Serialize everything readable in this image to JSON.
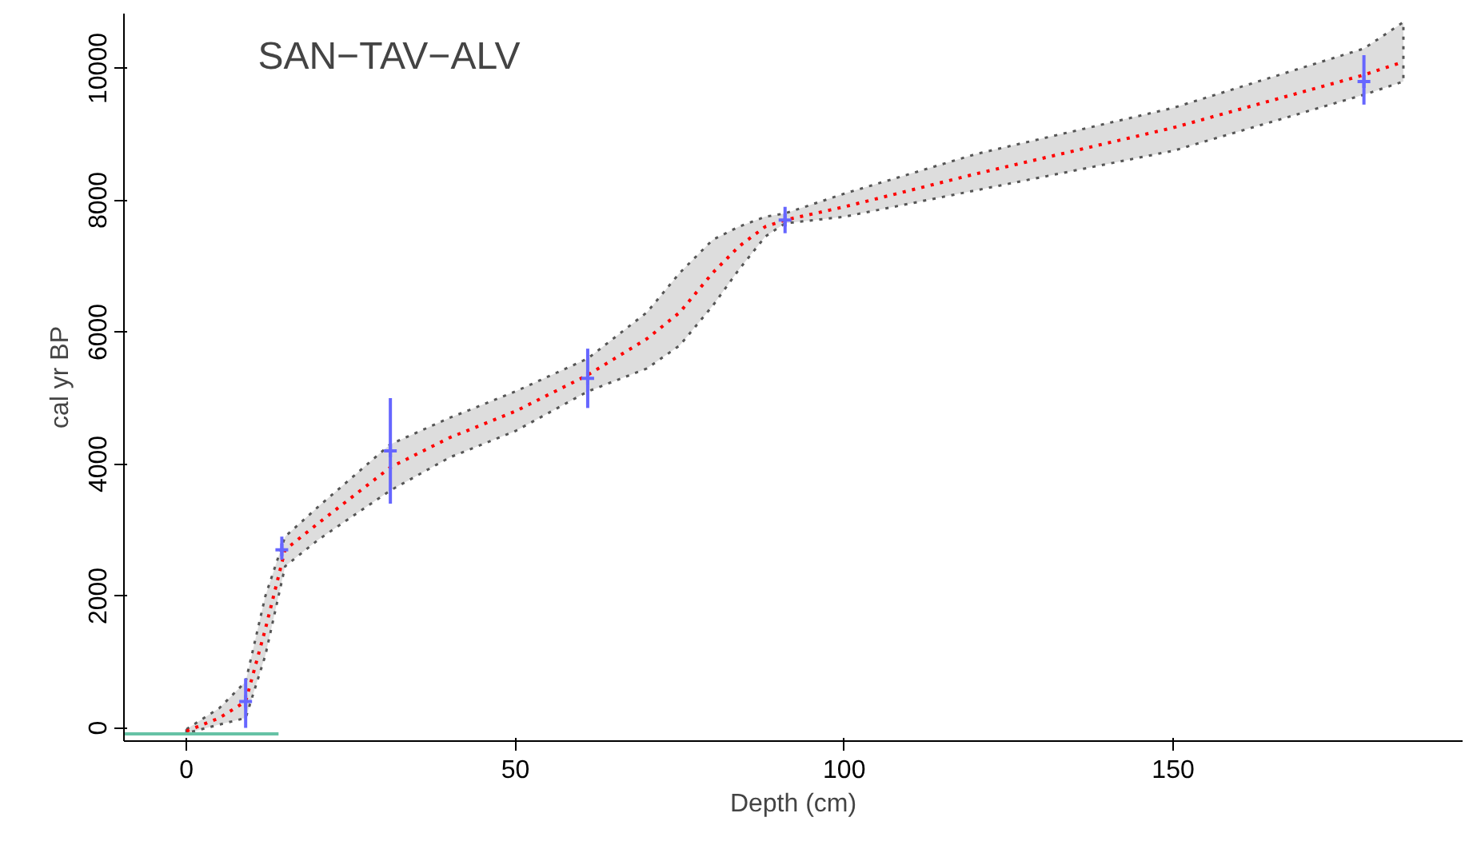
{
  "chart_data": {
    "type": "line",
    "title": "SAN−TAV−ALV",
    "xlabel": "Depth (cm)",
    "ylabel": "cal yr BP",
    "xlim": [
      -9.5,
      194
    ],
    "ylim": [
      -200,
      10830
    ],
    "xticks": [
      0,
      50,
      100,
      150
    ],
    "yticks": [
      0,
      2000,
      4000,
      6000,
      8000,
      10000
    ],
    "grid": false,
    "series": [
      {
        "color": "#ff0000",
        "line_style": "dotted",
        "marker": "none",
        "x": [
          0,
          5,
          9,
          12,
          15,
          20,
          31,
          40,
          50,
          61,
          70,
          75,
          80,
          84,
          88,
          91,
          100,
          120,
          150,
          179,
          185
        ],
        "values": [
          -50,
          150,
          400,
          1500,
          2700,
          3100,
          3950,
          4400,
          4800,
          5350,
          5900,
          6300,
          6900,
          7300,
          7600,
          7700,
          7900,
          8400,
          9100,
          9900,
          10100
        ],
        "lower": [
          -80,
          50,
          150,
          1100,
          2450,
          2850,
          3600,
          4100,
          4500,
          5100,
          5450,
          5800,
          6400,
          6950,
          7450,
          7650,
          7750,
          8150,
          8750,
          9600,
          9800
        ],
        "upper": [
          -20,
          300,
          700,
          2000,
          2900,
          3350,
          4300,
          4700,
          5100,
          5600,
          6300,
          6900,
          7400,
          7600,
          7750,
          7800,
          8100,
          8700,
          9400,
          10300,
          10700
        ]
      },
      {
        "color": "#66c2a5",
        "line_style": "solid",
        "marker": "none",
        "x": [
          -9.5,
          14
        ],
        "values": [
          -90,
          -90
        ]
      },
      {
        "type": "scatter",
        "color": "#6666ff",
        "marker": "cross",
        "x": [
          9,
          14.5,
          31,
          61,
          91,
          179
        ],
        "values": [
          400,
          2700,
          4200,
          5300,
          7700,
          9800
        ],
        "errors": [
          [
            0,
            750
          ],
          [
            2550,
            2900
          ],
          [
            3400,
            5000
          ],
          [
            4850,
            5750
          ],
          [
            7500,
            7900
          ],
          [
            9450,
            10200
          ]
        ]
      }
    ]
  }
}
